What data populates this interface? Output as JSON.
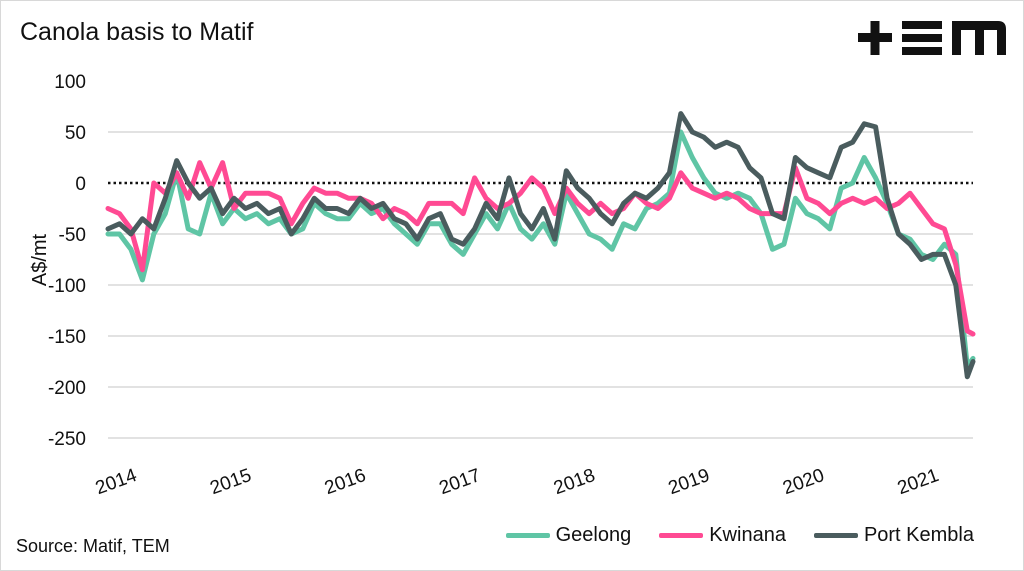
{
  "logo_text": "TEM",
  "source": "Source: Matif, TEM",
  "colors": {
    "geelong": "#5fc5a5",
    "kwinana": "#ff4a93",
    "port_kembla": "#4a5c5e",
    "grid": "#d9d9d9"
  },
  "chart_data": {
    "type": "line",
    "title": "Canola basis to Matif",
    "xlabel": "",
    "ylabel": "A$/mt",
    "ylim": [
      -250,
      100
    ],
    "xlim": [
      2014,
      2021.55
    ],
    "yticks": [
      100,
      50,
      0,
      -50,
      -100,
      -150,
      -200,
      -250
    ],
    "ytick_labels": [
      "100",
      "50",
      "0",
      "-50",
      "-100",
      "-150",
      "-200",
      "-250"
    ],
    "xticks": [
      2014,
      2015,
      2016,
      2017,
      2018,
      2019,
      2020,
      2021
    ],
    "xtick_labels": [
      "2014",
      "2015",
      "2016",
      "2017",
      "2018",
      "2019",
      "2020",
      "2021"
    ],
    "zero_line": "dotted",
    "grid": true,
    "legend_placement": "bottom-right",
    "x": [
      2014.0,
      2014.1,
      2014.2,
      2014.3,
      2014.4,
      2014.5,
      2014.6,
      2014.7,
      2014.8,
      2014.9,
      2015.0,
      2015.1,
      2015.2,
      2015.3,
      2015.4,
      2015.5,
      2015.6,
      2015.7,
      2015.8,
      2015.9,
      2016.0,
      2016.1,
      2016.2,
      2016.3,
      2016.4,
      2016.5,
      2016.6,
      2016.7,
      2016.8,
      2016.9,
      2017.0,
      2017.1,
      2017.2,
      2017.3,
      2017.4,
      2017.5,
      2017.6,
      2017.7,
      2017.8,
      2017.9,
      2018.0,
      2018.1,
      2018.2,
      2018.3,
      2018.4,
      2018.5,
      2018.6,
      2018.7,
      2018.8,
      2018.9,
      2019.0,
      2019.1,
      2019.2,
      2019.3,
      2019.4,
      2019.5,
      2019.6,
      2019.7,
      2019.8,
      2019.9,
      2020.0,
      2020.1,
      2020.2,
      2020.3,
      2020.4,
      2020.5,
      2020.6,
      2020.7,
      2020.8,
      2020.9,
      2021.0,
      2021.1,
      2021.2,
      2021.3,
      2021.4,
      2021.5,
      2021.55
    ],
    "series": [
      {
        "name": "Geelong",
        "key": "geelong",
        "values": [
          -50,
          -50,
          -65,
          -95,
          -50,
          -30,
          10,
          -45,
          -50,
          -10,
          -40,
          -25,
          -35,
          -30,
          -40,
          -35,
          -50,
          -45,
          -20,
          -30,
          -35,
          -35,
          -20,
          -30,
          -25,
          -40,
          -50,
          -60,
          -40,
          -40,
          -60,
          -70,
          -50,
          -30,
          -45,
          -20,
          -45,
          -55,
          -40,
          -60,
          -10,
          -30,
          -50,
          -55,
          -65,
          -40,
          -45,
          -25,
          -20,
          -10,
          50,
          25,
          5,
          -10,
          -15,
          -10,
          -15,
          -30,
          -65,
          -60,
          -15,
          -30,
          -35,
          -45,
          -5,
          0,
          25,
          5,
          -20,
          -50,
          -55,
          -70,
          -75,
          -60,
          -70,
          -180,
          -172
        ]
      },
      {
        "name": "Kwinana",
        "key": "kwinana",
        "values": [
          -25,
          -30,
          -45,
          -85,
          0,
          -10,
          10,
          -15,
          20,
          -5,
          20,
          -25,
          -10,
          -10,
          -10,
          -15,
          -40,
          -20,
          -5,
          -10,
          -10,
          -15,
          -15,
          -20,
          -35,
          -25,
          -30,
          -40,
          -20,
          -20,
          -20,
          -30,
          5,
          -15,
          -25,
          -20,
          -10,
          5,
          -5,
          -30,
          -5,
          -20,
          -30,
          -20,
          -30,
          -25,
          -10,
          -20,
          -25,
          -15,
          10,
          -5,
          -10,
          -15,
          -10,
          -15,
          -25,
          -30,
          -30,
          -30,
          15,
          -15,
          -20,
          -30,
          -20,
          -15,
          -20,
          -15,
          -25,
          -20,
          -10,
          -25,
          -40,
          -45,
          -80,
          -145,
          -148
        ]
      },
      {
        "name": "Port Kembla",
        "key": "port_kembla",
        "values": [
          -45,
          -40,
          -50,
          -35,
          -45,
          -15,
          22,
          0,
          -15,
          -5,
          -30,
          -15,
          -25,
          -20,
          -30,
          -25,
          -50,
          -35,
          -15,
          -25,
          -25,
          -30,
          -15,
          -25,
          -20,
          -35,
          -40,
          -55,
          -35,
          -30,
          -55,
          -60,
          -45,
          -20,
          -35,
          5,
          -30,
          -45,
          -25,
          -55,
          12,
          -5,
          -15,
          -30,
          -40,
          -20,
          -10,
          -15,
          -5,
          10,
          68,
          50,
          45,
          35,
          40,
          35,
          15,
          5,
          -30,
          -35,
          25,
          15,
          10,
          5,
          35,
          40,
          58,
          55,
          -15,
          -50,
          -60,
          -75,
          -70,
          -70,
          -100,
          -190,
          -175
        ]
      }
    ]
  }
}
